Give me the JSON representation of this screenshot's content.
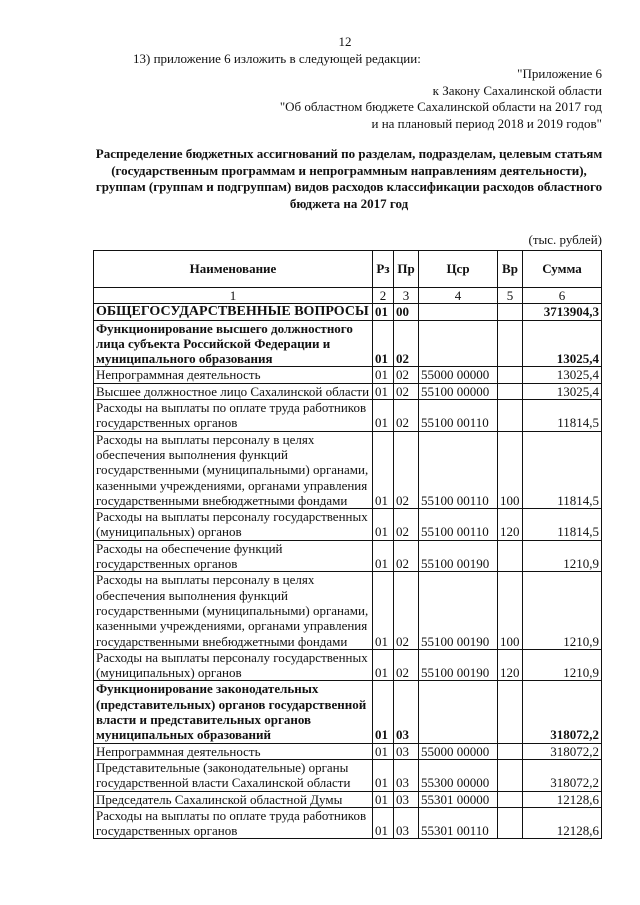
{
  "page_number": "12",
  "intro": "13) приложение 6 изложить в следующей редакции:",
  "appendix": [
    "\"Приложение 6",
    "к Закону Сахалинской области",
    "\"Об областном бюджете Сахалинской области на 2017 год",
    "и на плановый период 2018 и 2019 годов\""
  ],
  "title": "Распределение бюджетных ассигнований по разделам, подразделам, целевым статьям (государственным программам и непрограммным направлениям деятельности), группам (группам и подгруппам) видов расходов классификации расходов областного бюджета на 2017 год",
  "unit": "(тыс. рублей)",
  "table": {
    "headers": [
      "Наименование",
      "Рз",
      "Пр",
      "Цср",
      "Вр",
      "Сумма"
    ],
    "col_numbers": [
      "1",
      "2",
      "3",
      "4",
      "5",
      "6"
    ],
    "rows": [
      {
        "name": "ОБЩЕГОСУДАРСТВЕННЫЕ ВОПРОСЫ",
        "rz": "01",
        "pr": "00",
        "csr": "",
        "vr": "",
        "sum": "3713904,3",
        "bold": true
      },
      {
        "name": "Функционирование высшего должностного лица субъекта Российской Федерации и муниципального образования",
        "rz": "01",
        "pr": "02",
        "csr": "",
        "vr": "",
        "sum": "13025,4",
        "bold": true
      },
      {
        "name": "Непрограммная деятельность",
        "rz": "01",
        "pr": "02",
        "csr": "55000 00000",
        "vr": "",
        "sum": "13025,4"
      },
      {
        "name": "Высшее должностное лицо Сахалинской области",
        "rz": "01",
        "pr": "02",
        "csr": "55100 00000",
        "vr": "",
        "sum": "13025,4"
      },
      {
        "name": "Расходы на выплаты по оплате труда работников государственных органов",
        "rz": "01",
        "pr": "02",
        "csr": "55100 00110",
        "vr": "",
        "sum": "11814,5"
      },
      {
        "name": "Расходы на выплаты персоналу в целях обеспечения выполнения функций государственными (муниципальными) органами, казенными учреждениями, органами управления государственными внебюджетными фондами",
        "rz": "01",
        "pr": "02",
        "csr": "55100 00110",
        "vr": "100",
        "sum": "11814,5"
      },
      {
        "name": "Расходы на выплаты персоналу государственных (муниципальных) органов",
        "rz": "01",
        "pr": "02",
        "csr": "55100 00110",
        "vr": "120",
        "sum": "11814,5"
      },
      {
        "name": "Расходы на обеспечение функций государственных органов",
        "rz": "01",
        "pr": "02",
        "csr": "55100 00190",
        "vr": "",
        "sum": "1210,9"
      },
      {
        "name": "Расходы на выплаты персоналу в целях обеспечения выполнения функций государственными (муниципальными) органами, казенными учреждениями, органами управления государственными внебюджетными фондами",
        "rz": "01",
        "pr": "02",
        "csr": "55100 00190",
        "vr": "100",
        "sum": "1210,9"
      },
      {
        "name": "Расходы на выплаты персоналу государственных (муниципальных) органов",
        "rz": "01",
        "pr": "02",
        "csr": "55100 00190",
        "vr": "120",
        "sum": "1210,9"
      },
      {
        "name": "Функционирование законодательных (представительных) органов государственной власти и представительных органов муниципальных образований",
        "rz": "01",
        "pr": "03",
        "csr": "",
        "vr": "",
        "sum": "318072,2",
        "bold": true
      },
      {
        "name": "Непрограммная деятельность",
        "rz": "01",
        "pr": "03",
        "csr": "55000 00000",
        "vr": "",
        "sum": "318072,2"
      },
      {
        "name": "Представительные (законодательные) органы государственной власти Сахалинской области",
        "rz": "01",
        "pr": "03",
        "csr": "55300 00000",
        "vr": "",
        "sum": "318072,2"
      },
      {
        "name": "Председатель Сахалинской областной Думы",
        "rz": "01",
        "pr": "03",
        "csr": "55301 00000",
        "vr": "",
        "sum": "12128,6"
      },
      {
        "name": "Расходы на выплаты по оплате труда работников государственных органов",
        "rz": "01",
        "pr": "03",
        "csr": "55301 00110",
        "vr": "",
        "sum": "12128,6"
      }
    ]
  }
}
